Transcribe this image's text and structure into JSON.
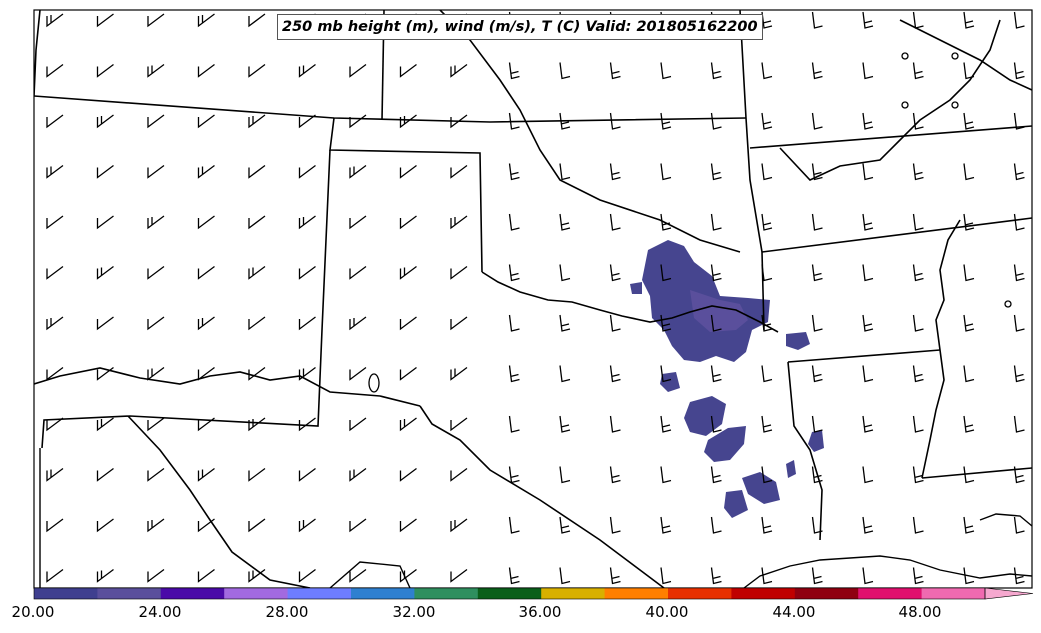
{
  "title": "250 mb height (m), wind (m/s), T (C) Valid: 201805162200",
  "colorbar": {
    "tick_labels": [
      "20.00",
      "24.00",
      "28.00",
      "32.00",
      "36.00",
      "40.00",
      "44.00",
      "48.00"
    ],
    "colors": [
      "#3f3f8f",
      "#5a4f9c",
      "#4a0aa8",
      "#a26ae0",
      "#6e7dff",
      "#2f80d0",
      "#2f8f5f",
      "#0a5f1a",
      "#d8b000",
      "#ff7f00",
      "#e83000",
      "#c00000",
      "#8f0010",
      "#e0106e",
      "#f06ab0"
    ]
  }
}
